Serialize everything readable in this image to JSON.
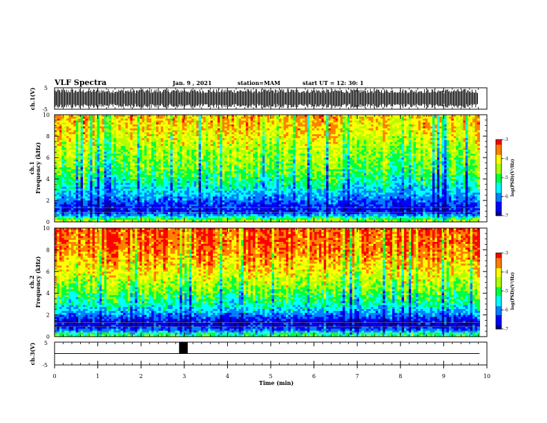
{
  "header": {
    "title": "VLF Spectra",
    "date": "Jan. 9 , 2021",
    "station": "station=MAM",
    "start": "start UT =  12: 30: 1"
  },
  "chart_data": [
    {
      "type": "line",
      "name": "ch1-waveform",
      "ylabel": "ch.1(V)",
      "ylim": [
        -5,
        5
      ],
      "yticks": [
        "5",
        "-5"
      ],
      "xlim": [
        0,
        10
      ],
      "description": "dense oscillating waveform near full scale (-5..5 V) across 0-9.8 min"
    },
    {
      "type": "heatmap",
      "name": "ch1-spectrogram",
      "ylabel": [
        "ch.1",
        "Frequency (kHz)"
      ],
      "ylim": [
        0,
        10
      ],
      "yticks": [
        "0",
        "2",
        "4",
        "6",
        "8",
        "10"
      ],
      "xlim": [
        0,
        9.83
      ],
      "colorbar": {
        "label": "log(PSD)(V²/Hz)",
        "range": [
          -7,
          -3
        ],
        "ticks": [
          "-3",
          "-4",
          "-5",
          "-6",
          "-7"
        ]
      },
      "profile": [
        {
          "f": 0.0,
          "level": -4.2
        },
        {
          "f": 0.5,
          "level": -5.6
        },
        {
          "f": 1.0,
          "level": -6.5
        },
        {
          "f": 1.5,
          "level": -6.4
        },
        {
          "f": 2.0,
          "level": -6.1
        },
        {
          "f": 2.5,
          "level": -5.8
        },
        {
          "f": 3.0,
          "level": -5.6
        },
        {
          "f": 4.0,
          "level": -5.1
        },
        {
          "f": 5.0,
          "level": -4.8
        },
        {
          "f": 6.0,
          "level": -4.6
        },
        {
          "f": 7.0,
          "level": -4.4
        },
        {
          "f": 8.0,
          "level": -4.1
        },
        {
          "f": 9.0,
          "level": -3.9
        },
        {
          "f": 10.0,
          "level": -3.8
        }
      ]
    },
    {
      "type": "heatmap",
      "name": "ch2-spectrogram",
      "ylabel": [
        "ch.2",
        "Frequency (kHz)"
      ],
      "ylim": [
        0,
        10
      ],
      "yticks": [
        "0",
        "2",
        "4",
        "6",
        "8",
        "10"
      ],
      "xlim": [
        0,
        9.83
      ],
      "colorbar": {
        "label": "log(PSD)(V²/Hz)",
        "range": [
          -7,
          -3
        ],
        "ticks": [
          "-3",
          "-4",
          "-5",
          "-6",
          "-7"
        ]
      },
      "profile": [
        {
          "f": 0.0,
          "level": -4.6
        },
        {
          "f": 0.5,
          "level": -5.9
        },
        {
          "f": 1.0,
          "level": -6.6
        },
        {
          "f": 1.5,
          "level": -6.5
        },
        {
          "f": 2.0,
          "level": -6.0
        },
        {
          "f": 2.5,
          "level": -5.6
        },
        {
          "f": 3.0,
          "level": -5.3
        },
        {
          "f": 4.0,
          "level": -4.8
        },
        {
          "f": 5.0,
          "level": -4.4
        },
        {
          "f": 6.0,
          "level": -4.0
        },
        {
          "f": 7.0,
          "level": -3.7
        },
        {
          "f": 8.0,
          "level": -3.4
        },
        {
          "f": 9.0,
          "level": -3.3
        },
        {
          "f": 10.0,
          "level": -3.2
        }
      ]
    },
    {
      "type": "line",
      "name": "ch3-waveform",
      "ylabel": "ch.3(V)",
      "ylim": [
        -5,
        5
      ],
      "yticks": [
        "5",
        "-5"
      ],
      "xlim": [
        0,
        10
      ],
      "xlabel": "Time (min)",
      "xticks": [
        "0",
        "1",
        "2",
        "3",
        "4",
        "5",
        "6",
        "7",
        "8",
        "9",
        "10"
      ],
      "baseline": 0,
      "pulse": {
        "start": 2.88,
        "end": 3.08,
        "low": 0,
        "high": 5
      }
    }
  ],
  "colors": {
    "colormap": [
      "#00008b",
      "#0000ff",
      "#0080ff",
      "#00ffff",
      "#00ff40",
      "#b0ff00",
      "#ffff00",
      "#ff8000",
      "#ff0000"
    ]
  }
}
